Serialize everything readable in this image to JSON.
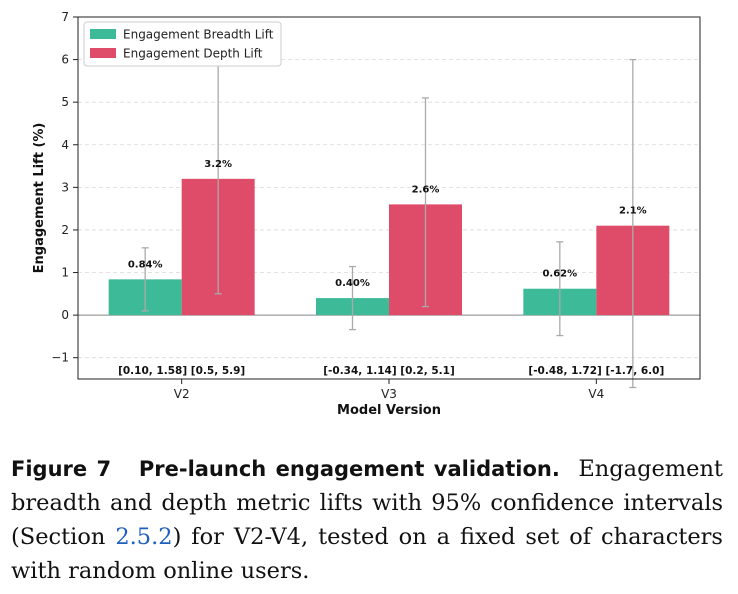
{
  "chart_data": {
    "type": "bar",
    "categories": [
      "V2",
      "V3",
      "V4"
    ],
    "series": [
      {
        "name": "Engagement Breadth Lift",
        "color": "#3dbb98",
        "values": [
          0.84,
          0.4,
          0.62
        ],
        "labels": [
          "0.84%",
          "0.40%",
          "0.62%"
        ],
        "ci": [
          [
            0.1,
            1.58
          ],
          [
            -0.34,
            1.14
          ],
          [
            -0.48,
            1.72
          ]
        ]
      },
      {
        "name": "Engagement Depth Lift",
        "color": "#df4c6a",
        "values": [
          3.2,
          2.6,
          2.1
        ],
        "labels": [
          "3.2%",
          "2.6%",
          "2.1%"
        ],
        "ci": [
          [
            0.5,
            5.9
          ],
          [
            0.2,
            5.1
          ],
          [
            -1.7,
            6.0
          ]
        ]
      }
    ],
    "ci_labels": [
      "[0.10, 1.58]  [0.5, 5.9]",
      "[-0.34, 1.14]  [0.2, 5.1]",
      "[-0.48, 1.72]  [-1.7, 6.0]"
    ],
    "xlabel": "Model Version",
    "ylabel": "Engagement Lift (%)",
    "ylim": [
      -1.5,
      7
    ],
    "yticks": [
      -1,
      0,
      1,
      2,
      3,
      4,
      5,
      6,
      7
    ],
    "grid": true,
    "legend_position": "top-left"
  },
  "caption": {
    "prefix": "Figure 7",
    "title": "Pre-launch engagement validation.",
    "text_before_ref": "Engagement breadth and depth metric lifts with 95% confidence intervals (Section ",
    "ref": "2.5.2",
    "text_after_ref": ") for V2-V4, tested on a fixed set of characters with random online users."
  }
}
